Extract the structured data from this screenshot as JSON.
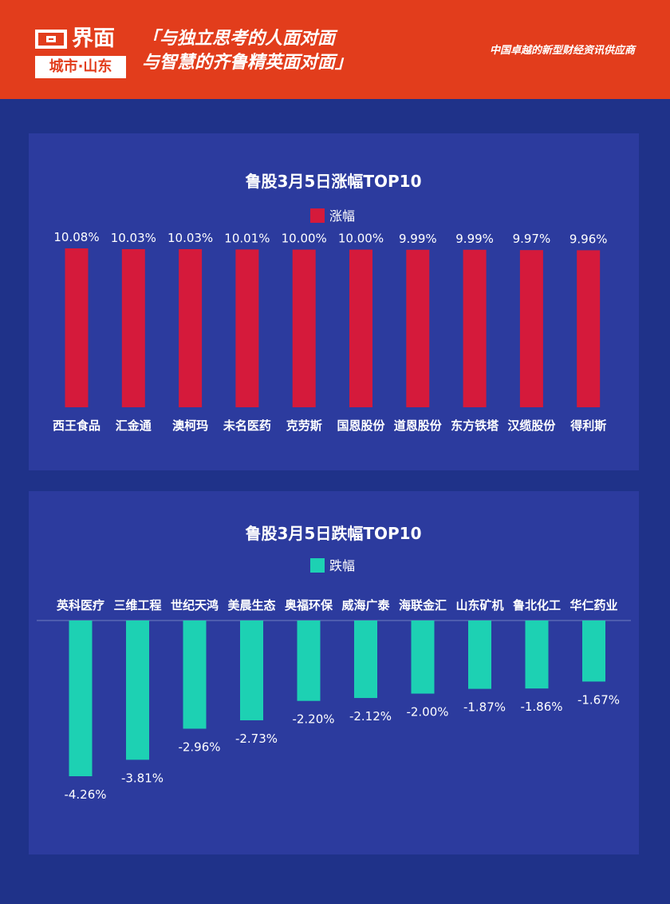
{
  "header": {
    "logo_main": "界面",
    "logo_sub": "城市·山东",
    "slogan_line1": "「与独立思考的人面对面",
    "slogan_line2": "与智慧的齐鲁精英面对面」",
    "tagline": "中国卓越的新型财经资讯供应商"
  },
  "colors": {
    "rise": "#d51a3b",
    "fall": "#1dd1b3",
    "panel": "#2c3b9e",
    "background": "#1f3289",
    "header": "#e23d1c"
  },
  "chart_data": [
    {
      "type": "bar",
      "title": "鲁股3月5日涨幅TOP10",
      "legend": "涨幅",
      "legend_position": "top-center",
      "categories": [
        "西王食品",
        "汇金通",
        "澳柯玛",
        "未名医药",
        "克劳斯",
        "国恩股份",
        "道恩股份",
        "东方铁塔",
        "汉缆股份",
        "得利斯"
      ],
      "values": [
        10.08,
        10.03,
        10.03,
        10.01,
        10.0,
        10.0,
        9.99,
        9.99,
        9.97,
        9.96
      ],
      "labels": [
        "10.08%",
        "10.03%",
        "10.03%",
        "10.01%",
        "10.00%",
        "10.00%",
        "9.99%",
        "9.99%",
        "9.97%",
        "9.96%"
      ],
      "ylim": [
        0,
        10.08
      ],
      "grid": false
    },
    {
      "type": "bar",
      "title": "鲁股3月5日跌幅TOP10",
      "legend": "跌幅",
      "legend_position": "top-center",
      "categories": [
        "英科医疗",
        "三维工程",
        "世纪天鸿",
        "美晨生态",
        "奥福环保",
        "威海广泰",
        "海联金汇",
        "山东矿机",
        "鲁北化工",
        "华仁药业"
      ],
      "values": [
        -4.26,
        -3.81,
        -2.96,
        -2.73,
        -2.2,
        -2.12,
        -2.0,
        -1.87,
        -1.86,
        -1.67
      ],
      "labels": [
        "-4.26%",
        "-3.81%",
        "-2.96%",
        "-2.73%",
        "-2.20%",
        "-2.12%",
        "-2.00%",
        "-1.87%",
        "-1.86%",
        "-1.67%"
      ],
      "ylim": [
        -4.26,
        0
      ],
      "grid": false
    }
  ]
}
